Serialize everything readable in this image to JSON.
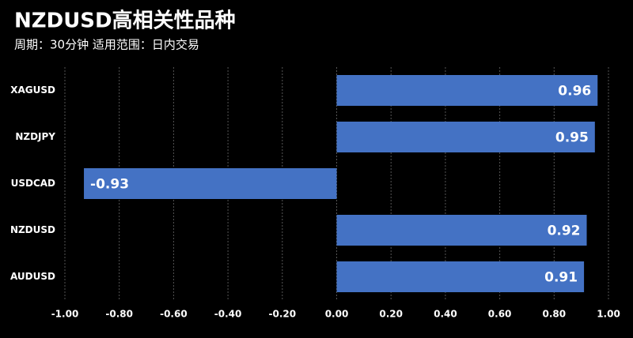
{
  "chart_data": {
    "type": "hbar",
    "title": "NZDUSD高相关性品种",
    "subtitle": "周期：30分钟  适用范围：日内交易",
    "categories": [
      "XAGUSD",
      "NZDJPY",
      "USDCAD",
      "NZDUSD",
      "AUDUSD"
    ],
    "values": [
      0.96,
      0.95,
      -0.93,
      0.92,
      0.91
    ],
    "color": "#4472c4",
    "xlim": [
      -1,
      1
    ],
    "xticks": [
      {
        "value": -1,
        "label": "-1.00"
      },
      {
        "value": -0.8,
        "label": "-0.80"
      },
      {
        "value": -0.6,
        "label": "-0.60"
      },
      {
        "value": -0.4,
        "label": "-0.40"
      },
      {
        "value": -0.2,
        "label": "-0.20"
      },
      {
        "value": 0,
        "label": "0.00"
      },
      {
        "value": 0.2,
        "label": "0.20"
      },
      {
        "value": 0.4,
        "label": "0.40"
      },
      {
        "value": 0.6,
        "label": "0.60"
      },
      {
        "value": 0.8,
        "label": "0.80"
      },
      {
        "value": 1,
        "label": "1.00"
      }
    ],
    "grid": true
  }
}
